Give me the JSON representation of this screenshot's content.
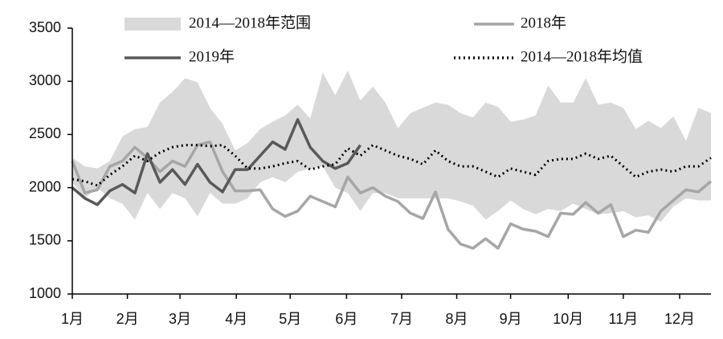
{
  "chart_data": {
    "type": "line",
    "x": [
      0,
      1,
      2,
      3,
      4,
      5,
      6,
      7,
      8,
      9,
      10,
      11,
      12,
      13,
      14,
      15,
      16,
      17,
      18,
      19,
      20,
      21,
      22,
      23,
      24,
      25,
      26,
      27,
      28,
      29,
      30,
      31,
      32,
      33,
      34,
      35,
      36,
      37,
      38,
      39,
      40,
      41,
      42,
      43,
      44,
      45,
      46,
      47,
      48,
      49,
      50,
      51
    ],
    "xlim": [
      0,
      51
    ],
    "xticks": [
      {
        "value": 0,
        "label": "1月"
      },
      {
        "value": 4.4,
        "label": "2月"
      },
      {
        "value": 8.6,
        "label": "3月"
      },
      {
        "value": 13.1,
        "label": "4月"
      },
      {
        "value": 17.4,
        "label": "5月"
      },
      {
        "value": 21.9,
        "label": "6月"
      },
      {
        "value": 26.3,
        "label": "7月"
      },
      {
        "value": 30.7,
        "label": "8月"
      },
      {
        "value": 35,
        "label": "9月"
      },
      {
        "value": 39.6,
        "label": "10月"
      },
      {
        "value": 44,
        "label": "11月"
      },
      {
        "value": 48.5,
        "label": "12月"
      }
    ],
    "ylim": [
      1000,
      3500
    ],
    "yticks": [
      1000,
      1500,
      2000,
      2500,
      3000,
      3500
    ],
    "series": [
      {
        "name": "2014—2018年范围",
        "color": "#d9d9d9",
        "kind": "band",
        "low": [
          2050,
          1900,
          2000,
          1900,
          1850,
          1700,
          1950,
          1800,
          1950,
          1900,
          1730,
          1950,
          1850,
          1850,
          1900,
          2050,
          2100,
          2050,
          2150,
          2180,
          2200,
          2000,
          1950,
          1780,
          1950,
          1950,
          1900,
          1900,
          1900,
          1900,
          1900,
          1870,
          1830,
          1700,
          1780,
          1880,
          1800,
          1750,
          1800,
          1780,
          1850,
          1800,
          1750,
          1760,
          1780,
          1720,
          1740,
          1680,
          1820,
          1900,
          1880,
          1880
        ],
        "high": [
          2280,
          2200,
          2180,
          2250,
          2480,
          2550,
          2570,
          2800,
          2900,
          3030,
          2990,
          2750,
          2600,
          2350,
          2420,
          2550,
          2620,
          2680,
          2780,
          2650,
          3080,
          2870,
          3100,
          2820,
          2950,
          2800,
          2560,
          2700,
          2750,
          2800,
          2780,
          2700,
          2660,
          2800,
          2760,
          2620,
          2640,
          2680,
          2960,
          2800,
          2800,
          3030,
          2780,
          2800,
          2750,
          2550,
          2630,
          2560,
          2670,
          2440,
          2750,
          2700
        ]
      },
      {
        "name": "2018年",
        "color": "#a6a6a6",
        "kind": "solid",
        "values": [
          2250,
          1950,
          1980,
          2200,
          2250,
          2380,
          2280,
          2150,
          2250,
          2200,
          2400,
          2430,
          2150,
          1970,
          1970,
          1980,
          1800,
          1730,
          1780,
          1920,
          1870,
          1820,
          2100,
          1950,
          2000,
          1920,
          1870,
          1760,
          1710,
          1960,
          1610,
          1470,
          1430,
          1520,
          1430,
          1660,
          1610,
          1590,
          1540,
          1760,
          1750,
          1860,
          1760,
          1840,
          1540,
          1600,
          1580,
          1780,
          1880,
          1980,
          1960,
          2060
        ]
      },
      {
        "name": "2019年",
        "color": "#595959",
        "kind": "solid",
        "values": [
          2000,
          1900,
          1840,
          1970,
          2030,
          1950,
          2320,
          2050,
          2170,
          2030,
          2220,
          2050,
          1960,
          2170,
          2170,
          2300,
          2430,
          2360,
          2640,
          2380,
          2250,
          2180,
          2230,
          2400,
          null,
          null,
          null,
          null,
          null,
          null,
          null,
          null,
          null,
          null,
          null,
          null,
          null,
          null,
          null,
          null,
          null,
          null,
          null,
          null,
          null,
          null,
          null,
          null,
          null,
          null,
          null,
          null
        ]
      },
      {
        "name": "2014—2018年均值",
        "color": "#000000",
        "kind": "dotted",
        "values": [
          2080,
          2060,
          2020,
          2120,
          2200,
          2300,
          2250,
          2330,
          2380,
          2400,
          2400,
          2390,
          2400,
          2300,
          2180,
          2180,
          2200,
          2230,
          2250,
          2170,
          2200,
          2220,
          2370,
          2300,
          2400,
          2350,
          2300,
          2270,
          2220,
          2350,
          2250,
          2200,
          2200,
          2150,
          2100,
          2180,
          2150,
          2120,
          2250,
          2270,
          2270,
          2320,
          2270,
          2300,
          2200,
          2100,
          2150,
          2170,
          2150,
          2200,
          2200,
          2280
        ]
      }
    ]
  }
}
